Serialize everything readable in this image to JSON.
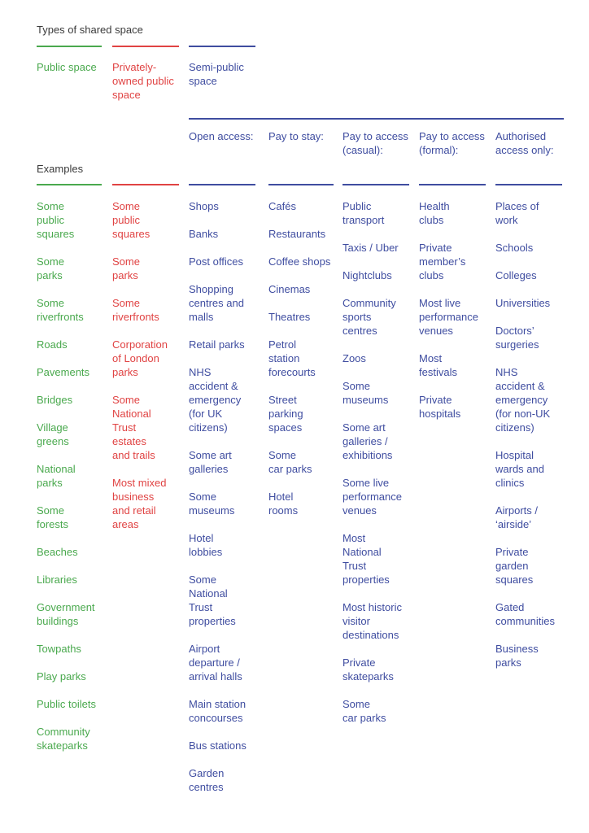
{
  "title": "Types of shared space",
  "examples_label": "Examples",
  "colors": {
    "green": "#4aa94e",
    "red": "#e04343",
    "blue": "#3f4da0",
    "heading": "#3a3a3a",
    "background": "#ffffff"
  },
  "categories": [
    {
      "label": "Public space"
    },
    {
      "label": "Privately-\nowned public\nspace"
    },
    {
      "label": "Semi-public\nspace"
    }
  ],
  "semi_public_subcolumns": [
    "Open access:",
    "Pay to stay:",
    "Pay to access\n(casual):",
    "Pay to access\n(formal):",
    "Authorised\naccess only:"
  ],
  "examples": {
    "public_space": [
      "Some\npublic\nsquares",
      "Some\nparks",
      "Some\nriverfronts",
      "Roads",
      "Pavements",
      "Bridges",
      "Village\ngreens",
      "National\nparks",
      "Some\nforests",
      "Beaches",
      "Libraries",
      "Government\nbuildings",
      "Towpaths",
      "Play parks",
      "Public toilets",
      "Community\nskateparks"
    ],
    "privately_owned_public_space": [
      "Some\npublic\nsquares",
      "Some\nparks",
      "Some\nriverfronts",
      "Corporation\nof London\nparks",
      "Some\nNational\nTrust\nestates\nand trails",
      "Most mixed\nbusiness\nand retail\nareas"
    ],
    "open_access": [
      "Shops",
      "Banks",
      "Post offices",
      "Shopping\ncentres and\nmalls",
      "Retail parks",
      "NHS\naccident &\nemergency\n(for UK\ncitizens)",
      "Some art\ngalleries",
      "Some\nmuseums",
      "Hotel\nlobbies",
      "Some\nNational\nTrust\nproperties",
      "Airport\ndeparture /\narrival halls",
      "Main station\nconcourses",
      "Bus stations",
      "Garden\ncentres"
    ],
    "pay_to_stay": [
      "Cafés",
      "Restaurants",
      "Coffee shops",
      "Cinemas",
      "Theatres",
      "Petrol\nstation\nforecourts",
      "Street\nparking\nspaces",
      "Some\ncar parks",
      "Hotel\nrooms"
    ],
    "pay_to_access_casual": [
      "Public\ntransport",
      "Taxis / Uber",
      "Nightclubs",
      "Community\nsports\ncentres",
      "Zoos",
      "Some\nmuseums",
      "Some art\ngalleries /\nexhibitions",
      "Some live\nperformance\nvenues",
      "Most\nNational\nTrust\nproperties",
      "Most historic\nvisitor\ndestinations",
      "Private\nskateparks",
      "Some\ncar parks"
    ],
    "pay_to_access_formal": [
      "Health\nclubs",
      "Private\nmember’s\nclubs",
      "Most live\nperformance\nvenues",
      "Most\nfestivals",
      "Private\nhospitals"
    ],
    "authorised_access_only": [
      "Places of\nwork",
      "Schools",
      "Colleges",
      "Universities",
      "Doctors’\nsurgeries",
      "NHS\naccident &\nemergency\n(for non-UK\ncitizens)",
      "Hospital\nwards and\nclinics",
      "Airports /\n‘airside’",
      "Private\ngarden\nsquares",
      "Gated\ncommunities",
      "Business\nparks"
    ]
  }
}
